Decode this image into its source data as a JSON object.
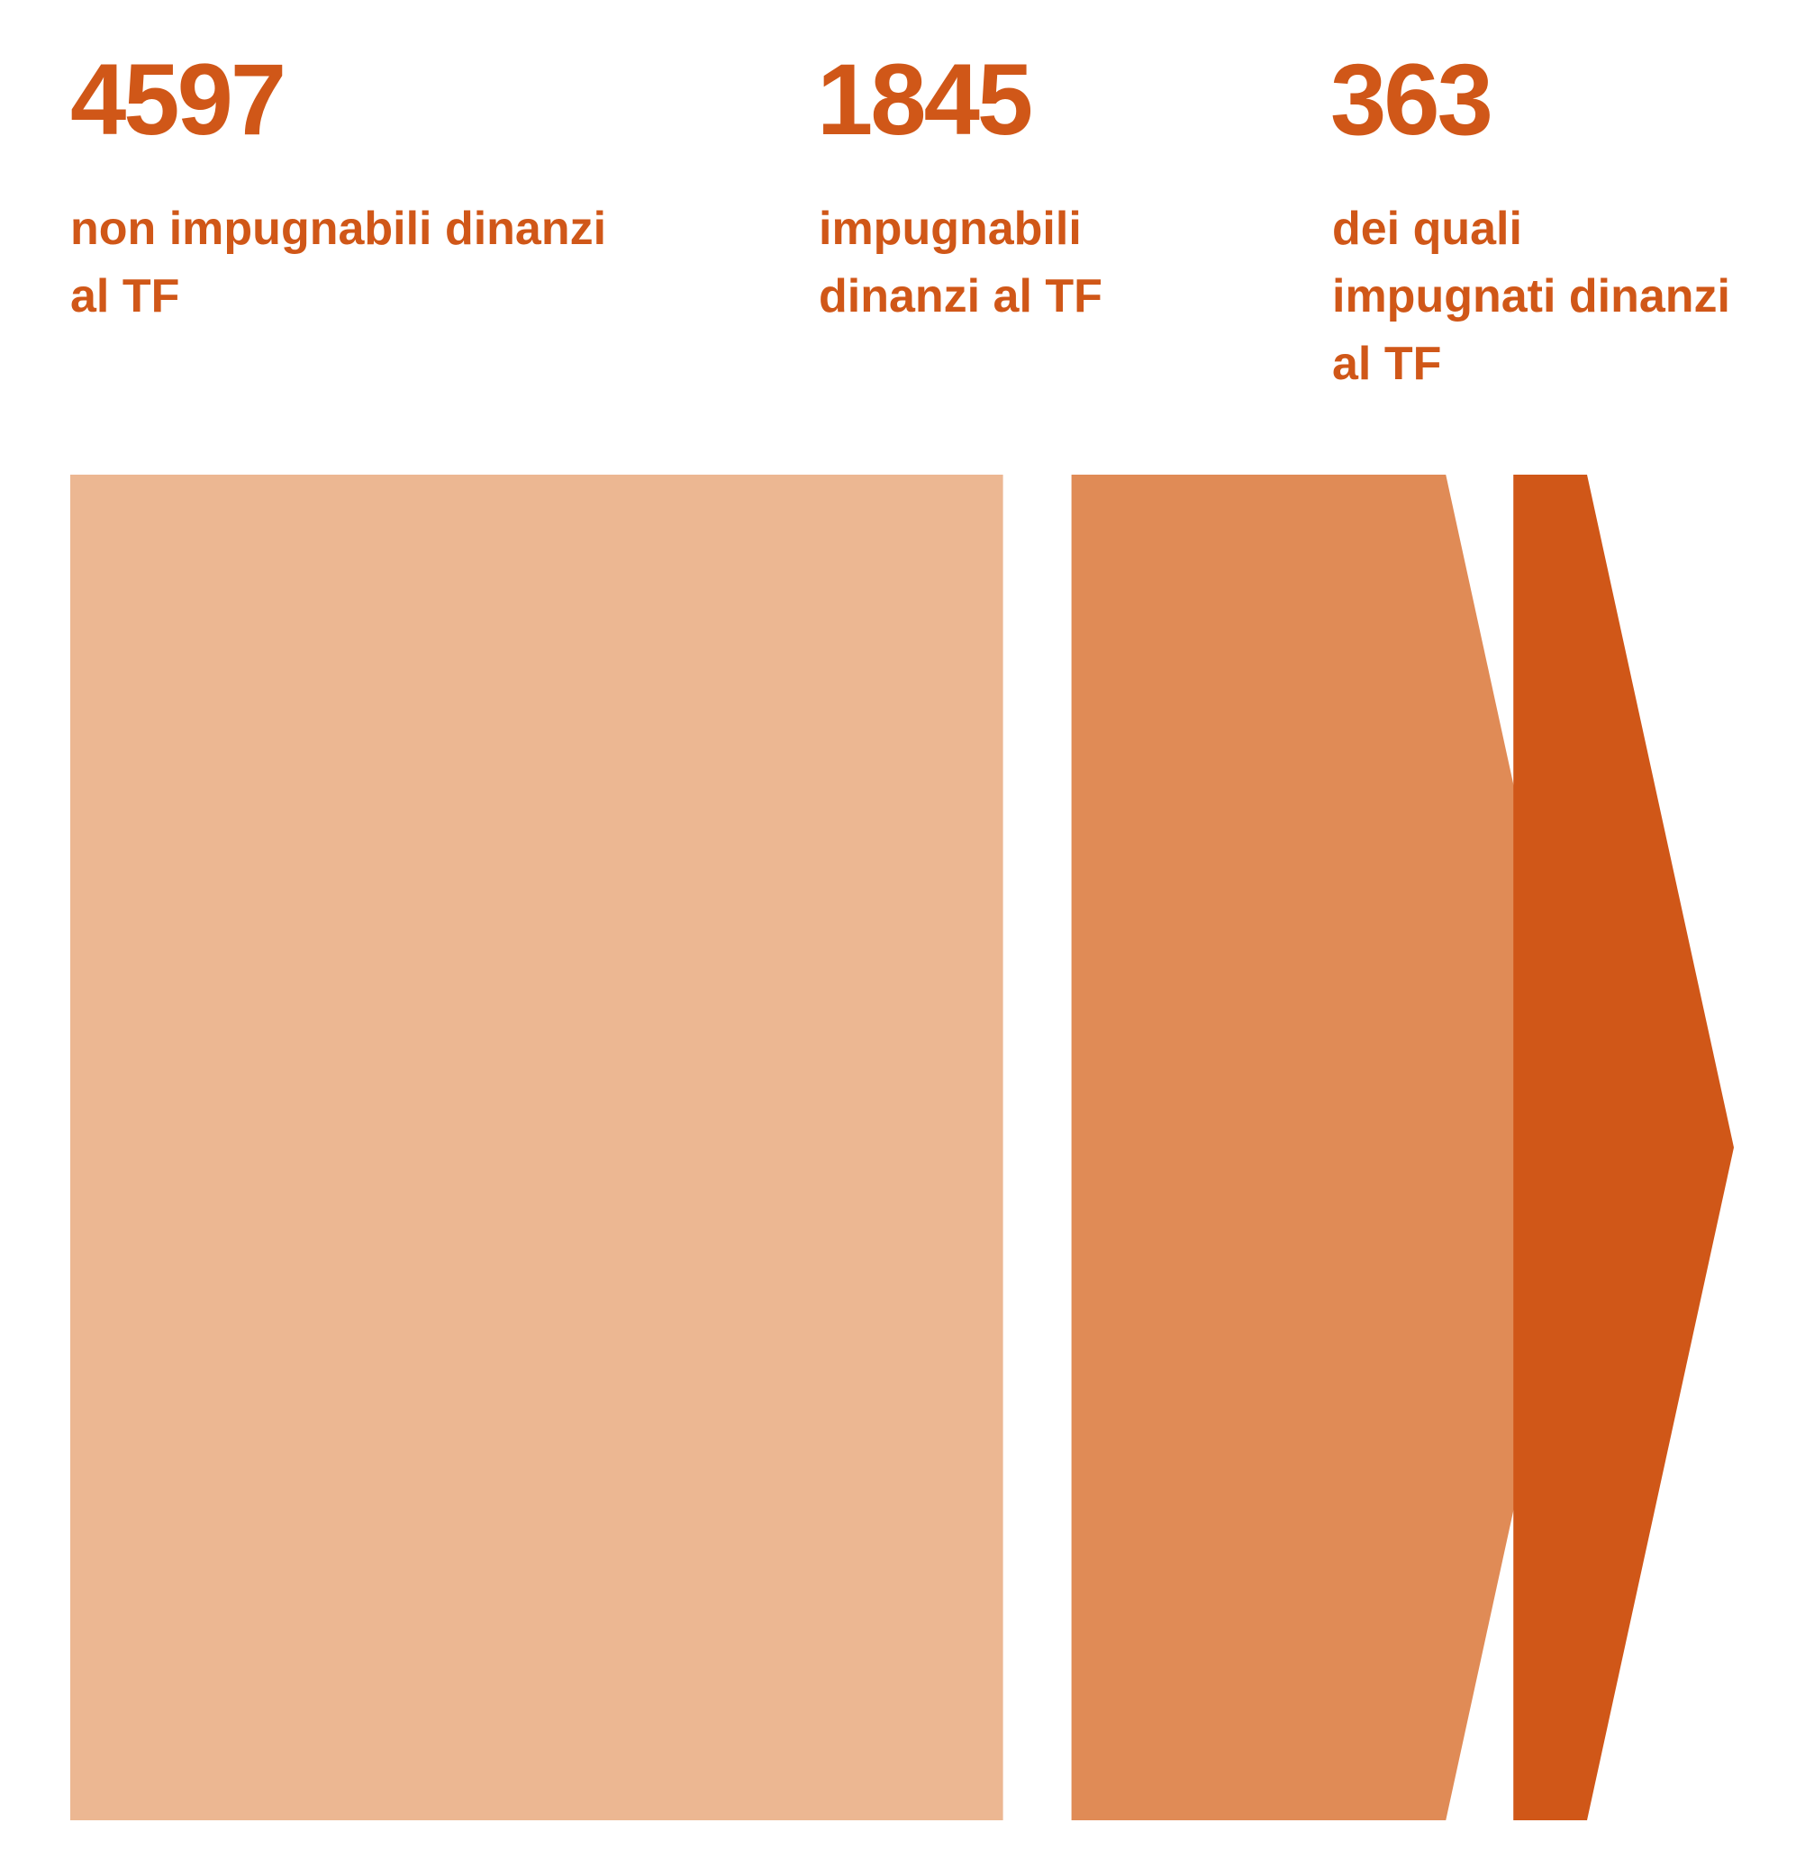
{
  "chart_data": {
    "type": "bar",
    "categories": [
      "non impugnabili dinanzi al TF",
      "impugnabili dinanzi al TF",
      "dei quali impugnati dinanzi al TF"
    ],
    "values": [
      4597,
      1845,
      363
    ],
    "colors": [
      "#ecb792",
      "#e08b56",
      "#d05718"
    ],
    "text_color": "#d05718"
  }
}
